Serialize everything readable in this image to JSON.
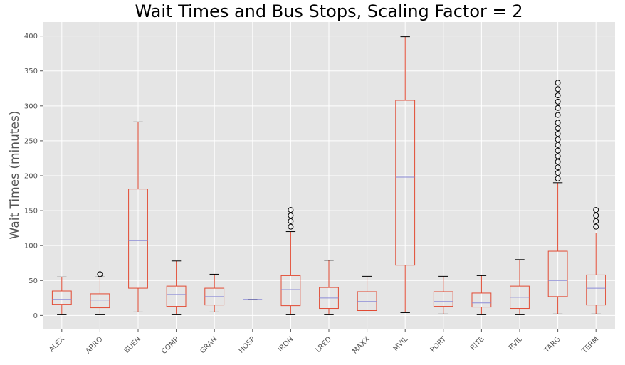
{
  "chart_data": {
    "type": "box",
    "title": "Wait Times and Bus Stops, Scaling Factor = 2",
    "xlabel": "",
    "ylabel": "Wait Times (minutes)",
    "ylim": [
      -20,
      420
    ],
    "yticks": [
      0,
      50,
      100,
      150,
      200,
      250,
      300,
      350,
      400
    ],
    "grid": true,
    "colors": {
      "background": "#e5e5e5",
      "grid": "#ffffff",
      "box": "#e24a33",
      "median": "#8b8bd6",
      "whisker_cap": "#000000",
      "outlier": "#000000"
    },
    "categories": [
      "ALEX",
      "ARRO",
      "BUEN",
      "COMP",
      "GRAN",
      "HOSP",
      "IRON",
      "LRED",
      "MAXX",
      "MVIL",
      "PORT",
      "RITE",
      "RVIL",
      "TARG",
      "TERM"
    ],
    "boxes": [
      {
        "whislo": 1,
        "q1": 16,
        "med": 23,
        "q3": 35,
        "whishi": 55,
        "fliers": []
      },
      {
        "whislo": 1,
        "q1": 11,
        "med": 22,
        "q3": 31,
        "whishi": 55,
        "fliers": [
          59
        ]
      },
      {
        "whislo": 5,
        "q1": 39,
        "med": 107,
        "q3": 181,
        "whishi": 277,
        "fliers": []
      },
      {
        "whislo": 1,
        "q1": 13,
        "med": 30,
        "q3": 42,
        "whishi": 78,
        "fliers": []
      },
      {
        "whislo": 5,
        "q1": 15,
        "med": 27,
        "q3": 39,
        "whishi": 59,
        "fliers": []
      },
      {
        "whislo": 23,
        "q1": 23,
        "med": 23,
        "q3": 23,
        "whishi": 23,
        "fliers": []
      },
      {
        "whislo": 1,
        "q1": 14,
        "med": 37,
        "q3": 57,
        "whishi": 120,
        "fliers": [
          127,
          135,
          143,
          151
        ]
      },
      {
        "whislo": 1,
        "q1": 10,
        "med": 25,
        "q3": 40,
        "whishi": 79,
        "fliers": []
      },
      {
        "whislo": 7,
        "q1": 7,
        "med": 20,
        "q3": 34,
        "whishi": 56,
        "fliers": []
      },
      {
        "whislo": 4,
        "q1": 72,
        "med": 198,
        "q3": 308,
        "whishi": 399,
        "fliers": []
      },
      {
        "whislo": 2,
        "q1": 13,
        "med": 20,
        "q3": 34,
        "whishi": 56,
        "fliers": []
      },
      {
        "whislo": 1,
        "q1": 12,
        "med": 18,
        "q3": 32,
        "whishi": 57,
        "fliers": []
      },
      {
        "whislo": 1,
        "q1": 10,
        "med": 26,
        "q3": 42,
        "whishi": 80,
        "fliers": []
      },
      {
        "whislo": 2,
        "q1": 27,
        "med": 50,
        "q3": 92,
        "whishi": 190,
        "fliers": [
          196,
          204,
          212,
          220,
          228,
          236,
          244,
          252,
          260,
          268,
          276,
          287,
          297,
          306,
          315,
          324,
          333
        ]
      },
      {
        "whislo": 2,
        "q1": 15,
        "med": 39,
        "q3": 58,
        "whishi": 118,
        "fliers": [
          127,
          135,
          143,
          151
        ]
      }
    ]
  }
}
